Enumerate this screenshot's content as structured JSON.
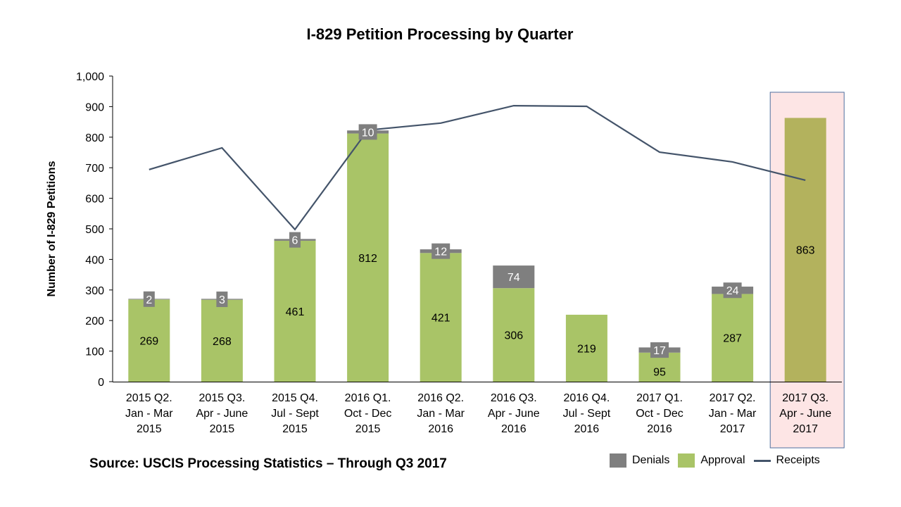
{
  "chart_data": {
    "type": "bar",
    "stacked": true,
    "title": "I-829 Petition Processing by Quarter",
    "xlabel": "",
    "ylabel": "Number of I-829 Petitions",
    "ylim": [
      0,
      1000
    ],
    "yticks": [
      0,
      100,
      200,
      300,
      400,
      500,
      600,
      700,
      800,
      900,
      1000
    ],
    "ytick_labels": [
      "0",
      "100",
      "200",
      "300",
      "400",
      "500",
      "600",
      "700",
      "800",
      "900",
      "1,000"
    ],
    "grid": false,
    "categories": [
      [
        "2015 Q2.",
        "Jan - Mar",
        "2015"
      ],
      [
        "2015 Q3.",
        "Apr - June",
        "2015"
      ],
      [
        "2015 Q4.",
        "Jul - Sept",
        "2015"
      ],
      [
        "2016 Q1.",
        "Oct - Dec",
        "2015"
      ],
      [
        "2016 Q2.",
        "Jan - Mar",
        "2016"
      ],
      [
        "2016 Q3.",
        "Apr - June",
        "2016"
      ],
      [
        "2016 Q4.",
        "Jul - Sept",
        "2016"
      ],
      [
        "2017 Q1.",
        "Oct - Dec",
        "2016"
      ],
      [
        "2017 Q2.",
        "Jan - Mar",
        "2017"
      ],
      [
        "2017 Q3.",
        "Apr - June",
        "2017"
      ]
    ],
    "series": [
      {
        "name": "Approval",
        "type": "bar",
        "color": "#a9c467",
        "values": [
          269,
          268,
          461,
          812,
          421,
          306,
          219,
          95,
          287,
          863
        ]
      },
      {
        "name": "Denials",
        "type": "bar",
        "color": "#7f7f7f",
        "values": [
          2,
          3,
          6,
          10,
          12,
          74,
          0,
          17,
          24,
          0
        ],
        "labels_shown": [
          true,
          true,
          true,
          true,
          true,
          true,
          false,
          true,
          true,
          false
        ]
      },
      {
        "name": "Receipts",
        "type": "line",
        "color": "#44546a",
        "values": [
          694,
          765,
          498,
          823,
          846,
          903,
          901,
          751,
          719,
          659
        ]
      }
    ],
    "highlight": {
      "category_index": 9,
      "fill": "#fde5e5",
      "border": "#4f6fa0",
      "bar_color": "#b3b25d"
    },
    "legend": {
      "position": "bottom-right",
      "entries": [
        "Denials",
        "Approval",
        "Receipts"
      ]
    },
    "source": "Source: USCIS Processing Statistics – Through Q3 2017"
  }
}
